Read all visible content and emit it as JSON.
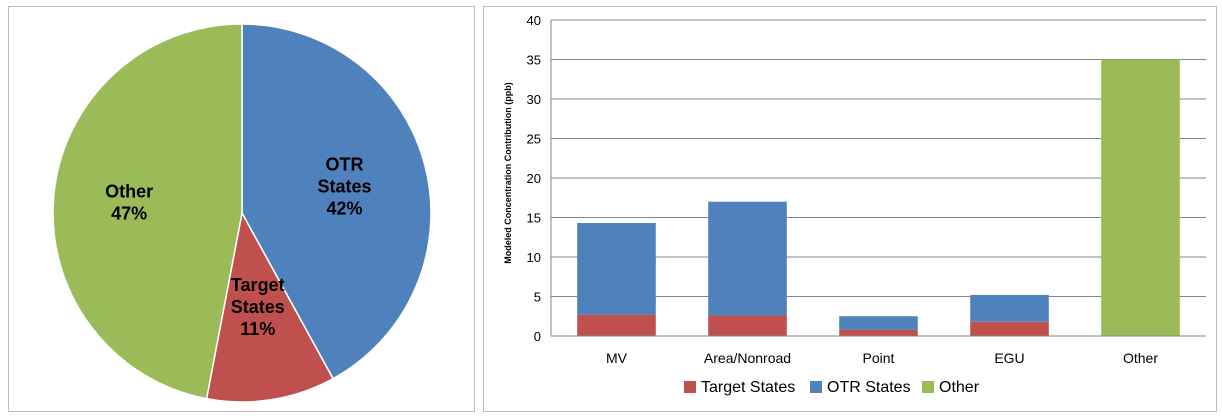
{
  "chart_data": [
    {
      "type": "pie",
      "slices": [
        {
          "label_lines": [
            "OTR",
            "States",
            "42%"
          ],
          "value": 42,
          "color": "#4f81bd"
        },
        {
          "label_lines": [
            "Target",
            "States",
            "11%"
          ],
          "value": 11,
          "color": "#c0504d"
        },
        {
          "label_lines": [
            "Other",
            "47%"
          ],
          "value": 47,
          "color": "#9bbb59"
        }
      ]
    },
    {
      "type": "bar",
      "stacked": true,
      "categories": [
        "MV",
        "Area/Nonroad",
        "Point",
        "EGU",
        "Other"
      ],
      "series": [
        {
          "name": "Target States",
          "values": [
            2.7,
            2.6,
            0.8,
            1.8,
            0
          ],
          "color": "#c0504d"
        },
        {
          "name": "OTR States",
          "values": [
            11.6,
            14.4,
            1.7,
            3.4,
            0
          ],
          "color": "#4f81bd"
        },
        {
          "name": "Other",
          "values": [
            0,
            0,
            0,
            0,
            35
          ],
          "color": "#9bbb59"
        }
      ],
      "ylabel": "Modeled Concentration Contribution (ppb)",
      "ylim": [
        0,
        40
      ],
      "yticks": [
        0,
        5,
        10,
        15,
        20,
        25,
        30,
        35,
        40
      ],
      "grid": true,
      "legend_position": "bottom"
    }
  ]
}
